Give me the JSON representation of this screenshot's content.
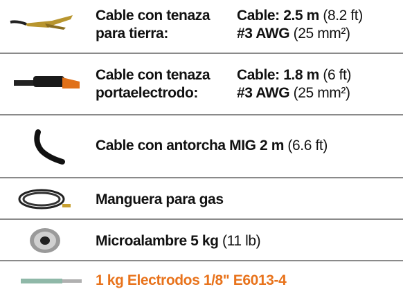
{
  "items": [
    {
      "label": [
        {
          "bold": "Cable con tenaza"
        },
        {
          "bold": "para tierra:"
        }
      ],
      "spec": [
        {
          "bold": "Cable: 2.5 m",
          "regular": " (8.2 ft)"
        },
        {
          "bold": "#3 AWG",
          "regular": " (25 mm²)"
        }
      ]
    },
    {
      "label": [
        {
          "bold": "Cable con tenaza"
        },
        {
          "bold": "portaelectrodo:"
        }
      ],
      "spec": [
        {
          "bold": "Cable: 1.8 m",
          "regular": " (6 ft)"
        },
        {
          "bold": "#3 AWG",
          "regular": " (25 mm²)"
        }
      ]
    },
    {
      "label": [
        {
          "bold": "Cable con antorcha MIG 2 m",
          "regular": " (6.6 ft)"
        }
      ]
    },
    {
      "label": [
        {
          "bold": "Manguera para gas"
        }
      ]
    },
    {
      "label": [
        {
          "bold": "Microalambre 5 kg",
          "regular": " (11 lb)"
        }
      ]
    },
    {
      "label": [
        {
          "bold": "1 kg Electrodos 1/8\" E6013-4"
        }
      ],
      "color": "#e8731c"
    }
  ]
}
